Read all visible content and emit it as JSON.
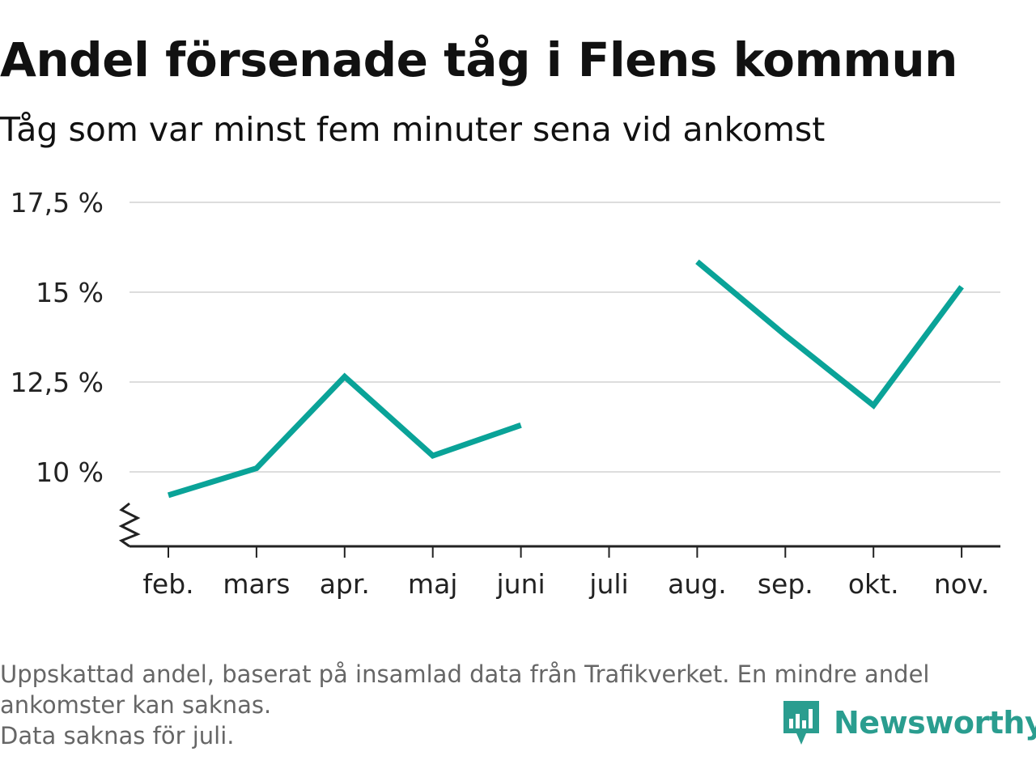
{
  "header": {
    "title": "Andel försenade tåg i Flens kommun",
    "subtitle": "Tåg som var minst fem minuter sena vid ankomst"
  },
  "chart_data": {
    "type": "line",
    "categories": [
      "feb.",
      "mars",
      "apr.",
      "maj",
      "juni",
      "juli",
      "aug.",
      "sep.",
      "okt.",
      "nov."
    ],
    "values": [
      9.35,
      10.1,
      12.65,
      10.45,
      11.3,
      null,
      15.85,
      13.8,
      11.85,
      15.15
    ],
    "y_ticks": [
      {
        "value": 10,
        "label": "10 %"
      },
      {
        "value": 12.5,
        "label": "12,5 %"
      },
      {
        "value": 15,
        "label": "15 %"
      },
      {
        "value": 17.5,
        "label": "17,5 %"
      }
    ],
    "ylim": [
      8,
      17.5
    ],
    "y_axis_break": true,
    "grid": true,
    "line_color": "#0aa398",
    "grid_color": "#dddddd"
  },
  "footer": {
    "note_line1": "Uppskattad andel, baserat på insamlad data från Trafikverket. En mindre andel",
    "note_line2": "ankomster kan saknas.",
    "note_line3": "Data saknas för juli.",
    "brand": "Newsworthy",
    "brand_color": "#2a9d8f",
    "brand_icon": "newsworthy-logo-icon"
  }
}
